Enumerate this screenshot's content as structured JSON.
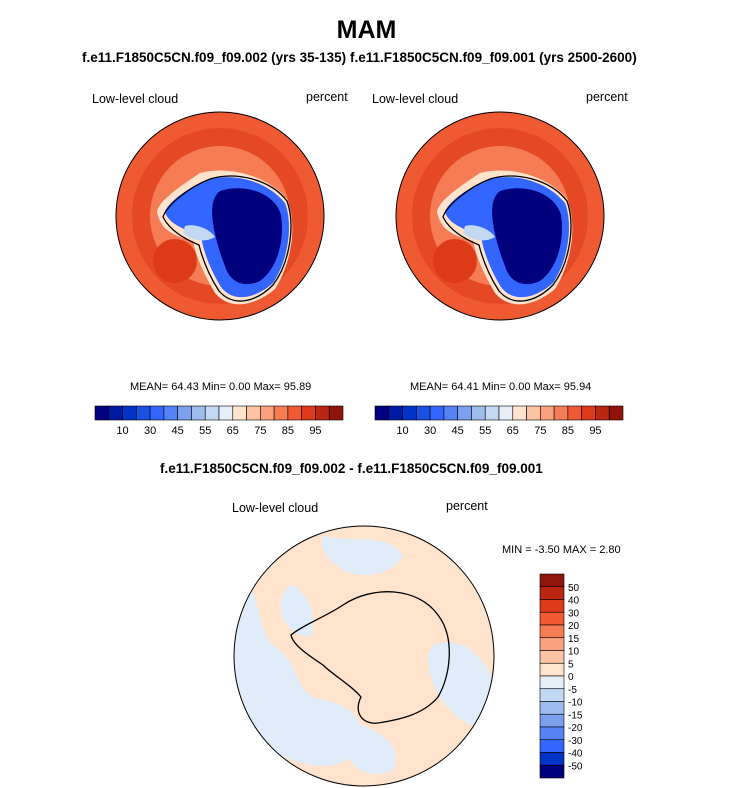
{
  "figure": {
    "title": "MAM",
    "bottom_subtitle": "f.e11.F1850C5CN.f09_f09.002 - f.e11.F1850C5CN.f09_f09.001"
  },
  "panels": [
    {
      "case": "f.e11.F1850C5CN.f09_f09.002 (yrs 35-135)",
      "variable": "Low-level cloud",
      "units": "percent",
      "stats_text": "MEAN=  64.43  Min=   0.00  Max=  95.89"
    },
    {
      "case": "f.e11.F1850C5CN.f09_f09.001 (yrs 2500-2600)",
      "variable": "Low-level cloud",
      "units": "percent",
      "stats_text": "MEAN=  64.41  Min=   0.00  Max=  95.94"
    },
    {
      "variable": "Low-level cloud",
      "units": "percent",
      "stats_text": "MIN =  -3.50 MAX =   2.80"
    }
  ],
  "chart_data": [
    {
      "type": "heatmap",
      "projection": "south polar stereographic",
      "subtitle": "f.e11.F1850C5CN.f09_f09.002 (yrs 35-135)",
      "label_left": "Low-level cloud",
      "label_right": "percent",
      "mean": 64.43,
      "min": 0.0,
      "max": 95.89,
      "colorbar": {
        "orientation": "horizontal",
        "levels": [
          5,
          10,
          15,
          20,
          30,
          40,
          45,
          50,
          55,
          60,
          65,
          70,
          75,
          80,
          85,
          90,
          95
        ],
        "tick_labels": [
          "10",
          "30",
          "45",
          "55",
          "65",
          "75",
          "85",
          "95"
        ],
        "colors": [
          "#00007f",
          "#0019a3",
          "#0033c8",
          "#1a4fe0",
          "#3366ff",
          "#5583f5",
          "#7aa0ee",
          "#9ebcec",
          "#c3d8f2",
          "#e6eef8",
          "#ffe3cc",
          "#fcc4a4",
          "#f9a27d",
          "#f57c55",
          "#f05a33",
          "#dd3a1a",
          "#bb2611",
          "#8f1409"
        ]
      }
    },
    {
      "type": "heatmap",
      "projection": "south polar stereographic",
      "subtitle": "f.e11.F1850C5CN.f09_f09.001 (yrs 2500-2600)",
      "label_left": "Low-level cloud",
      "label_right": "percent",
      "mean": 64.41,
      "min": 0.0,
      "max": 95.94,
      "colorbar": {
        "orientation": "horizontal",
        "levels": [
          5,
          10,
          15,
          20,
          30,
          40,
          45,
          50,
          55,
          60,
          65,
          70,
          75,
          80,
          85,
          90,
          95
        ],
        "tick_labels": [
          "10",
          "30",
          "45",
          "55",
          "65",
          "75",
          "85",
          "95"
        ],
        "colors": [
          "#00007f",
          "#0019a3",
          "#0033c8",
          "#1a4fe0",
          "#3366ff",
          "#5583f5",
          "#7aa0ee",
          "#9ebcec",
          "#c3d8f2",
          "#e6eef8",
          "#ffe3cc",
          "#fcc4a4",
          "#f9a27d",
          "#f57c55",
          "#f05a33",
          "#dd3a1a",
          "#bb2611",
          "#8f1409"
        ]
      }
    },
    {
      "type": "heatmap",
      "projection": "south polar stereographic",
      "subtitle": "f.e11.F1850C5CN.f09_f09.002 - f.e11.F1850C5CN.f09_f09.001",
      "label_left": "Low-level cloud",
      "label_right": "percent",
      "min": -3.5,
      "max": 2.8,
      "colorbar": {
        "orientation": "vertical",
        "tick_labels": [
          "50",
          "40",
          "30",
          "20",
          "15",
          "10",
          "5",
          "0",
          "-5",
          "-10",
          "-15",
          "-20",
          "-30",
          "-40",
          "-50"
        ],
        "colors": [
          "#8f1409",
          "#bb2611",
          "#dd3a1a",
          "#f05a33",
          "#f57c55",
          "#f9a27d",
          "#fcc4a4",
          "#ffe3cc",
          "#e6eef8",
          "#c3d8f2",
          "#9ebcec",
          "#7aa0ee",
          "#5583f5",
          "#3366ff",
          "#0033c8",
          "#00007f"
        ]
      }
    }
  ]
}
